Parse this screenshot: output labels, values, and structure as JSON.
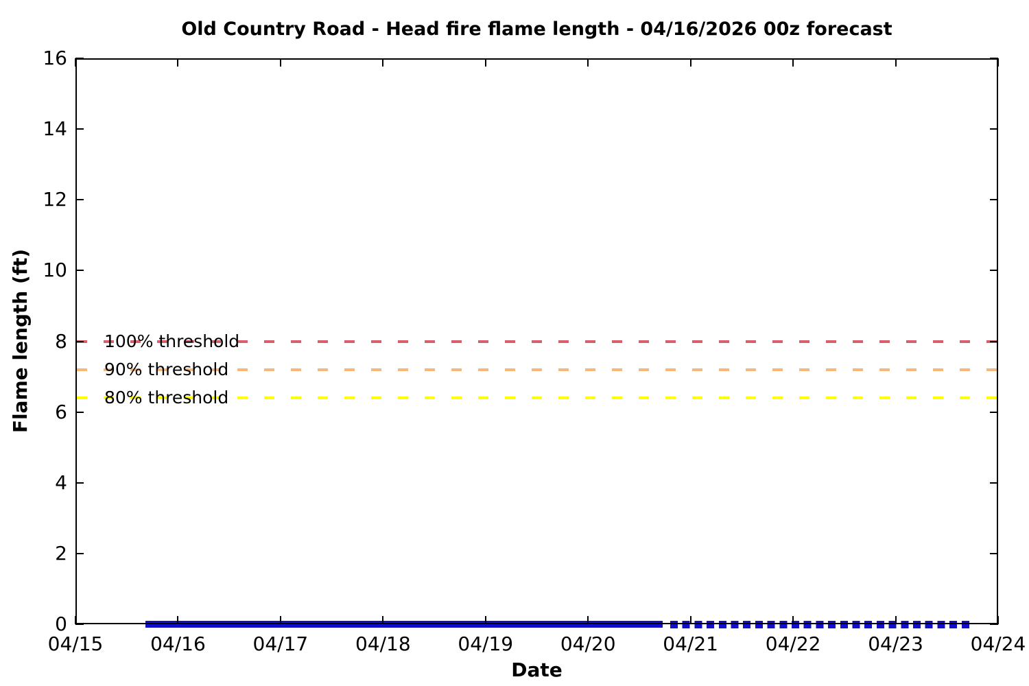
{
  "chart_data": {
    "type": "line",
    "title": "Old Country Road - Head fire flame length - 04/16/2026 00z forecast",
    "xlabel": "Date",
    "ylabel": "Flame length (ft)",
    "x_tick_labels": [
      "04/15",
      "04/16",
      "04/17",
      "04/18",
      "04/19",
      "04/20",
      "04/21",
      "04/22",
      "04/23",
      "04/24"
    ],
    "y_ticks": [
      0,
      2,
      4,
      6,
      8,
      10,
      12,
      14,
      16
    ],
    "ylim": [
      0,
      16
    ],
    "x_range_days": 9,
    "grid": false,
    "legend_position": "none",
    "thresholds": [
      {
        "label": "100% threshold",
        "value": 8,
        "color": "#d75f6d",
        "style": "dashed"
      },
      {
        "label": "90% threshold",
        "value": 7.2,
        "color": "#f6b87a",
        "style": "dashed"
      },
      {
        "label": "80% threshold",
        "value": 6.4,
        "color": "#ffff00",
        "style": "dashed"
      }
    ],
    "series": [
      {
        "name": "head-fire-flame-length-forecast",
        "style": "solid",
        "color": "#1010cc",
        "value": 0,
        "x_start_day": 0.68,
        "x_end_day": 5.73
      },
      {
        "name": "head-fire-flame-length-extended-forecast",
        "style": "dotted",
        "color": "#1010cc",
        "value": 0,
        "x_start_day": 5.8,
        "x_end_day": 8.72
      }
    ]
  }
}
